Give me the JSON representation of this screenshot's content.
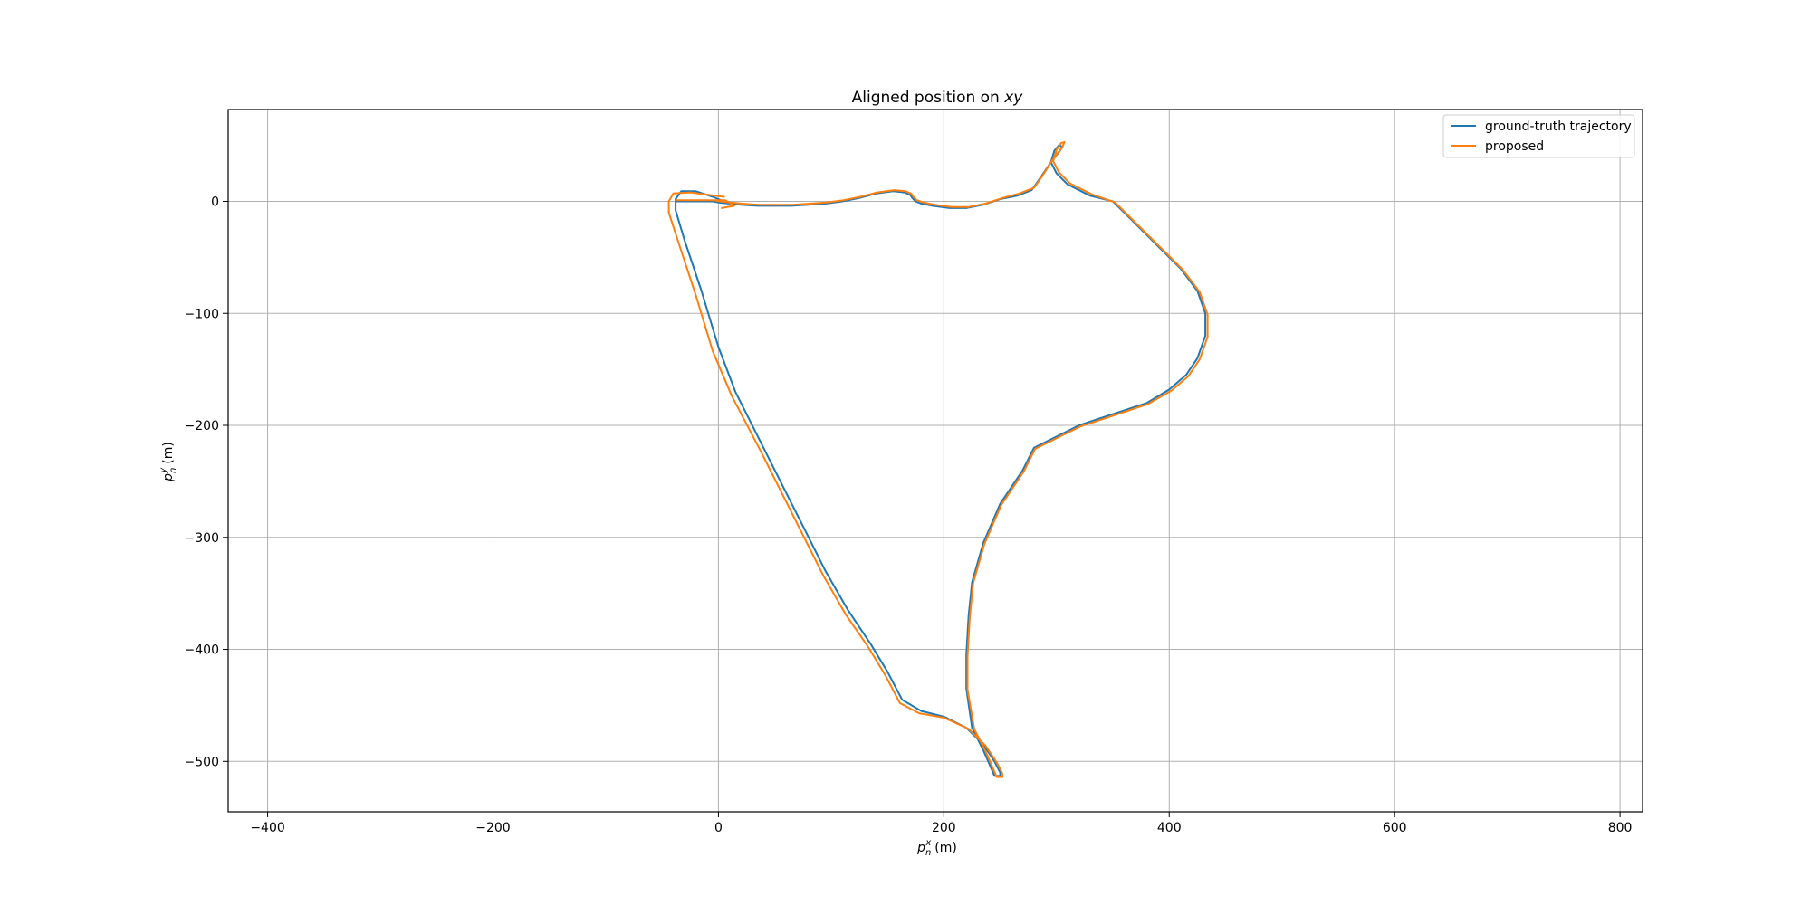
{
  "chart_data": {
    "type": "line",
    "title": "Aligned position on xy",
    "title_prefix": "Aligned position on",
    "title_math": "xy",
    "xlabel": "p_n^x (m)",
    "ylabel": "p_n^y (m)",
    "xlabel_parts": {
      "base": "p",
      "sub": "n",
      "sup": "x",
      "unit": "(m)"
    },
    "ylabel_parts": {
      "base": "p",
      "sub": "n",
      "sup": "y",
      "unit": "(m)"
    },
    "xlim": [
      -435,
      820
    ],
    "ylim": [
      -545,
      82
    ],
    "xticks": [
      -400,
      -200,
      0,
      200,
      400,
      600,
      800
    ],
    "yticks": [
      0,
      -100,
      -200,
      -300,
      -400,
      -500
    ],
    "xtick_labels": [
      "−400",
      "−200",
      "0",
      "200",
      "400",
      "600",
      "800"
    ],
    "ytick_labels": [
      "0",
      "−100",
      "−200",
      "−300",
      "−400",
      "−500"
    ],
    "grid": true,
    "legend_position": "top-right",
    "series": [
      {
        "name": "ground-truth trajectory",
        "color": "#1f77b4",
        "x": [
          10,
          -5,
          -20,
          -33,
          -38,
          -38,
          -30,
          -15,
          0,
          15,
          40,
          60,
          75,
          95,
          115,
          135,
          150,
          163,
          180,
          200,
          220,
          235,
          245,
          250,
          250,
          245,
          235,
          225,
          220,
          220,
          222,
          225,
          235,
          250,
          270,
          280,
          300,
          320,
          350,
          380,
          400,
          415,
          425,
          432,
          432,
          425,
          410,
          390,
          370,
          350,
          330,
          310,
          300,
          295,
          298,
          302,
          305,
          303,
          295,
          285,
          278,
          265,
          250,
          235,
          220,
          205,
          190,
          180,
          175,
          172,
          170,
          165,
          155,
          140,
          125,
          110,
          95,
          80,
          65,
          50,
          35,
          20,
          10,
          0,
          -5,
          -15,
          -25,
          -35,
          -38,
          -38,
          -34,
          -25,
          -10,
          5,
          15,
          12
        ],
        "y": [
          -2,
          4,
          9,
          9,
          2,
          -8,
          -35,
          -80,
          -130,
          -170,
          -220,
          -260,
          -290,
          -330,
          -365,
          -395,
          -420,
          -445,
          -455,
          -460,
          -470,
          -485,
          -500,
          -510,
          -513,
          -513,
          -490,
          -470,
          -435,
          -405,
          -370,
          -340,
          -305,
          -270,
          -240,
          -220,
          -210,
          -200,
          -190,
          -180,
          -168,
          -155,
          -140,
          -120,
          -100,
          -80,
          -60,
          -40,
          -20,
          0,
          5,
          15,
          25,
          35,
          45,
          50,
          49,
          45,
          35,
          20,
          10,
          5,
          2,
          -3,
          -6,
          -6,
          -4,
          -2,
          0,
          3,
          6,
          8,
          9,
          7,
          3,
          0,
          -2,
          -3,
          -4,
          -4,
          -4,
          -3,
          -2,
          -1,
          0,
          0,
          0,
          0,
          0,
          0,
          0,
          0,
          0,
          0,
          -2,
          -3
        ]
      },
      {
        "name": "proposed",
        "color": "#ff7f0e",
        "x": [
          5,
          -10,
          -25,
          -40,
          -44,
          -44,
          -35,
          -20,
          -5,
          12,
          38,
          58,
          73,
          93,
          113,
          133,
          148,
          161,
          178,
          200,
          222,
          237,
          247,
          252,
          252,
          247,
          237,
          227,
          221,
          221,
          223,
          226,
          236,
          251,
          271,
          281,
          301,
          321,
          351,
          381,
          402,
          417,
          427,
          434,
          434,
          427,
          412,
          392,
          372,
          352,
          332,
          312,
          302,
          297,
          300,
          304,
          307,
          305,
          297,
          287,
          280,
          267,
          252,
          237,
          222,
          207,
          192,
          182,
          176,
          173,
          171,
          166,
          156,
          141,
          126,
          111,
          96,
          81,
          66,
          51,
          36,
          21,
          11,
          1,
          -4,
          -14,
          -24,
          -34,
          -37,
          -37,
          -33,
          -24,
          -9,
          6,
          14,
          3
        ],
        "y": [
          4,
          6,
          8,
          7,
          0,
          -10,
          -38,
          -84,
          -134,
          -174,
          -224,
          -264,
          -294,
          -334,
          -369,
          -398,
          -423,
          -448,
          -457,
          -461,
          -471,
          -486,
          -501,
          -511,
          -514,
          -514,
          -491,
          -471,
          -436,
          -406,
          -371,
          -341,
          -306,
          -271,
          -241,
          -221,
          -211,
          -201,
          -191,
          -181,
          -169,
          -156,
          -141,
          -121,
          -101,
          -81,
          -61,
          -41,
          -21,
          -1,
          6,
          16,
          26,
          36,
          46,
          52,
          53,
          48,
          38,
          22,
          12,
          7,
          3,
          -2,
          -5,
          -5,
          -3,
          -1,
          1,
          4,
          7,
          9,
          10,
          8,
          4,
          1,
          -1,
          -2,
          -3,
          -3,
          -3,
          -2,
          -1,
          0,
          1,
          1,
          1,
          1,
          1,
          1,
          1,
          1,
          1,
          1,
          -4,
          -6
        ]
      }
    ]
  }
}
